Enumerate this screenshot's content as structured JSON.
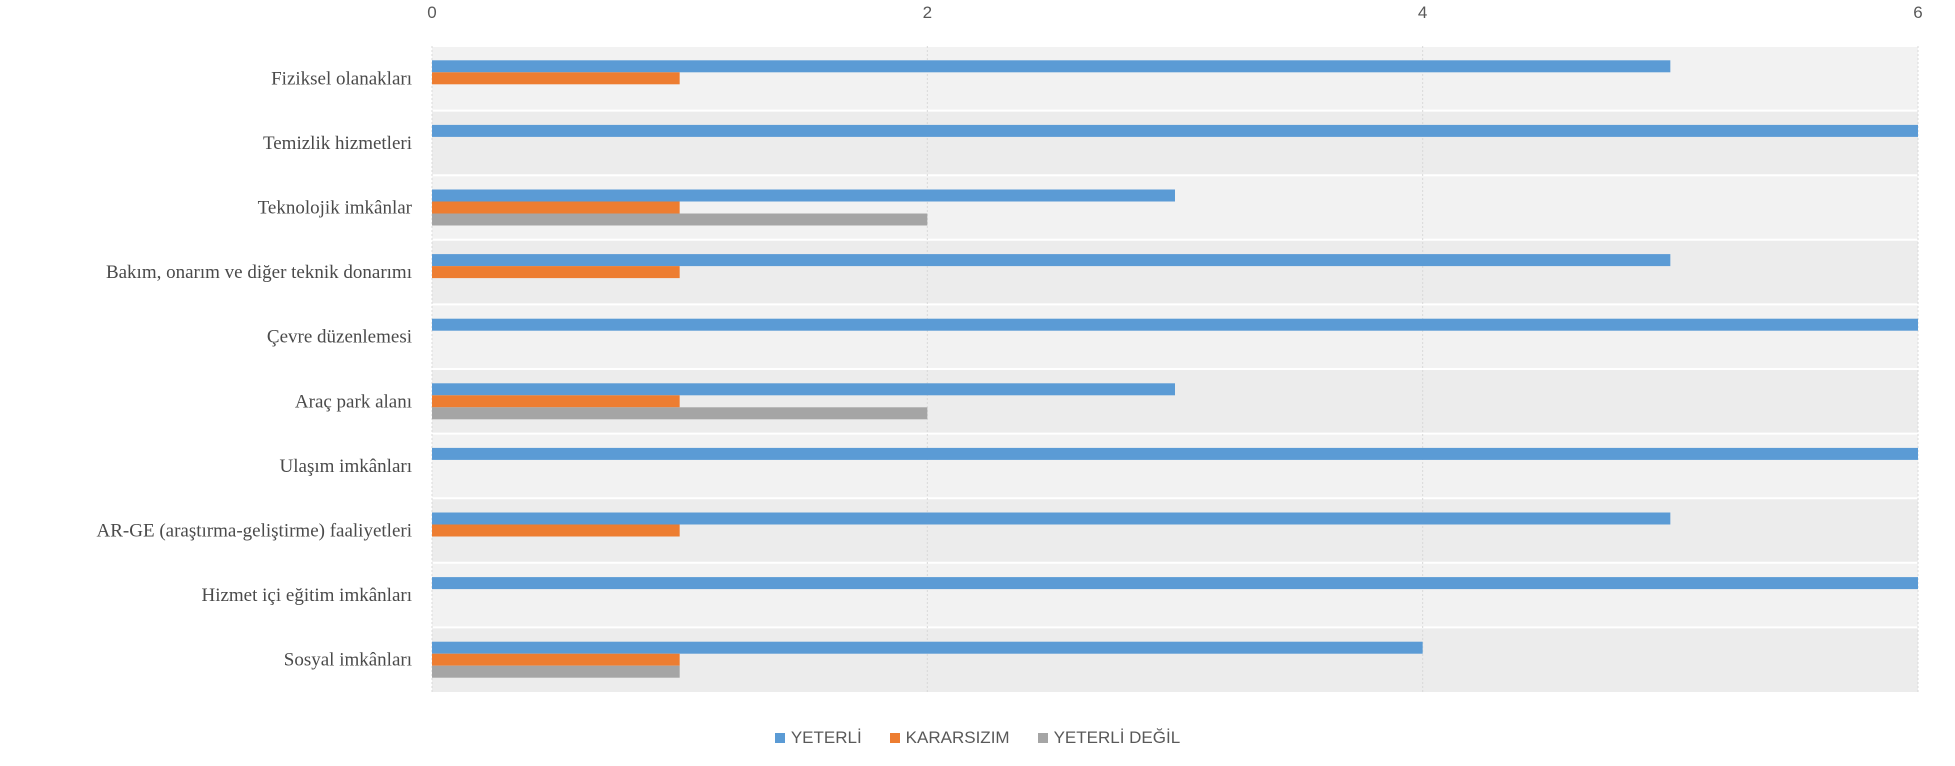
{
  "chart_data": {
    "type": "bar",
    "orientation": "horizontal",
    "categories": [
      "Fiziksel olanakları",
      "Temizlik hizmetleri",
      "Teknolojik imkânlar",
      "Bakım, onarım ve diğer teknik donarımı",
      "Çevre düzenlemesi",
      "Araç park alanı",
      "Ulaşım imkânları",
      "AR-GE (araştırma-geliştirme) faaliyetleri",
      "Hizmet içi eğitim imkânları",
      "Sosyal imkânları"
    ],
    "series": [
      {
        "name": "YETERLİ",
        "color": "#5b9bd5",
        "values": [
          5,
          6,
          3,
          5,
          6,
          3,
          6,
          5,
          6,
          4
        ]
      },
      {
        "name": "KARARSIZIM",
        "color": "#ed7d31",
        "values": [
          1,
          0,
          1,
          1,
          0,
          1,
          0,
          1,
          0,
          1
        ]
      },
      {
        "name": "YETERLİ DEĞİL",
        "color": "#a5a5a5",
        "values": [
          0,
          0,
          2,
          0,
          0,
          2,
          0,
          0,
          0,
          1
        ]
      }
    ],
    "xlim": [
      0,
      6
    ],
    "xticks": [
      "0",
      "2",
      "4",
      "6"
    ],
    "xaxis_position": "top",
    "grid": true,
    "legend_position": "bottom"
  }
}
